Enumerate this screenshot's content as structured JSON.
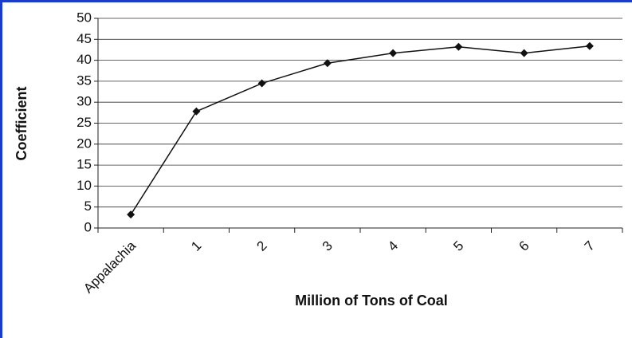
{
  "chart_data": {
    "type": "line",
    "x_label": "Million of Tons of Coal",
    "y_label": "Coefficient",
    "categories": [
      "Appalachia",
      "1",
      "2",
      "3",
      "4",
      "5",
      "6",
      "7"
    ],
    "values": [
      3.2,
      27.8,
      34.5,
      39.3,
      41.7,
      43.2,
      41.7,
      43.4
    ],
    "color": "#111111",
    "ylim": [
      0,
      50
    ],
    "yticks": [
      0,
      5,
      10,
      15,
      20,
      25,
      30,
      35,
      40,
      45,
      50
    ],
    "grid": true
  }
}
